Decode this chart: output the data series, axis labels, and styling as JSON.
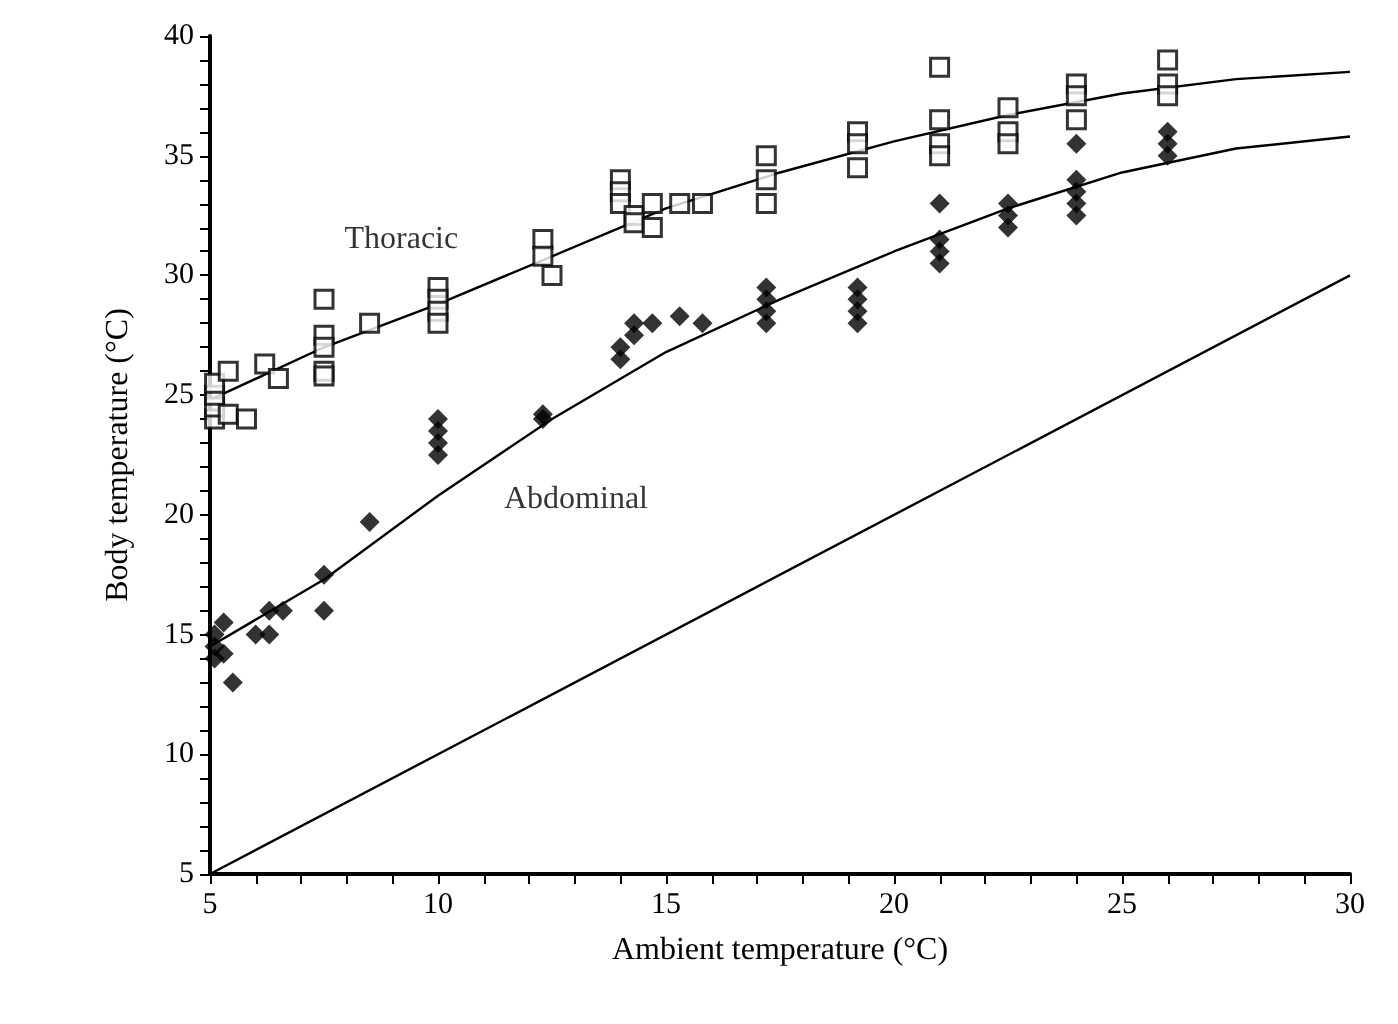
{
  "chart_data": {
    "type": "scatter",
    "xlabel": "Ambient temperature (°C)",
    "ylabel": "Body temperature (°C)",
    "xlim": [
      5,
      30
    ],
    "ylim": [
      5,
      40
    ],
    "xticks": [
      5,
      10,
      15,
      20,
      25,
      30
    ],
    "yticks": [
      5,
      10,
      15,
      20,
      25,
      30,
      35,
      40
    ],
    "grid": false,
    "legend": false,
    "series": [
      {
        "name": "Thoracic",
        "marker": "square",
        "color": "#000000",
        "x": [
          5.1,
          5.1,
          5.1,
          5.1,
          5.4,
          5.4,
          5.8,
          6.2,
          6.5,
          7.5,
          7.5,
          7.5,
          7.5,
          7.5,
          8.5,
          10,
          10,
          10,
          10,
          12.3,
          12.3,
          12.5,
          14,
          14,
          14,
          14.3,
          14.3,
          14.7,
          14.7,
          15.3,
          15.8,
          17.2,
          17.2,
          17.2,
          19.2,
          19.2,
          19.2,
          21,
          21,
          21,
          21,
          22.5,
          22.5,
          22.5,
          24,
          24,
          24,
          26,
          26,
          26
        ],
        "values": [
          24,
          24.5,
          25,
          25.5,
          26,
          24.2,
          24,
          26.3,
          25.7,
          29,
          27.5,
          27,
          26,
          25.8,
          28,
          29.5,
          29,
          28.5,
          28,
          31.5,
          30.8,
          30,
          34,
          33.5,
          33,
          32.5,
          32.2,
          33,
          32,
          33,
          33,
          35,
          34,
          33,
          36,
          35.5,
          34.5,
          38.7,
          36.5,
          35.5,
          35,
          37,
          36,
          35.5,
          38,
          37.5,
          36.5,
          39,
          38,
          37.5
        ]
      },
      {
        "name": "Abdominal",
        "marker": "diamond",
        "color": "#000000",
        "x": [
          5.1,
          5.1,
          5.1,
          5.3,
          5.3,
          5.5,
          6,
          6.3,
          6.3,
          6.6,
          7.5,
          7.5,
          8.5,
          10,
          10,
          10,
          10,
          12.3,
          12.3,
          14,
          14,
          14.3,
          14.3,
          14.7,
          15.3,
          15.8,
          17.2,
          17.2,
          17.2,
          17.2,
          19.2,
          19.2,
          19.2,
          19.2,
          21,
          21,
          21,
          21,
          22.5,
          22.5,
          22.5,
          24,
          24,
          24,
          24,
          24,
          26,
          26,
          26
        ],
        "values": [
          15,
          14.5,
          14,
          15.5,
          14.2,
          13,
          15,
          16,
          15,
          16,
          17.5,
          16,
          19.7,
          24,
          23.5,
          23,
          22.5,
          24,
          24.2,
          26.5,
          27,
          27.5,
          28,
          28,
          28.3,
          28,
          29.5,
          29,
          28.5,
          28,
          29.5,
          29,
          28.5,
          28,
          33,
          31.5,
          31,
          30.5,
          33,
          32.5,
          32,
          35.5,
          34,
          33.5,
          33,
          32.5,
          36,
          35.5,
          35
        ]
      },
      {
        "type": "line",
        "marker": "none",
        "color": "#000000",
        "x": [
          5,
          7.5,
          10,
          12.5,
          15,
          17.5,
          20,
          22.5,
          25,
          27.5,
          30
        ],
        "values": [
          24.8,
          27,
          28.8,
          30.8,
          32.8,
          34.3,
          35.6,
          36.7,
          37.6,
          38.2,
          38.5
        ]
      },
      {
        "type": "line",
        "marker": "none",
        "color": "#000000",
        "x": [
          5,
          7.5,
          10,
          12.5,
          15,
          17.5,
          20,
          22.5,
          25,
          27.5,
          30
        ],
        "values": [
          14.5,
          17.3,
          20.8,
          24,
          26.8,
          29,
          31,
          32.8,
          34.3,
          35.3,
          35.8
        ]
      },
      {
        "type": "line",
        "marker": "none",
        "color": "#000000",
        "x": [
          5,
          30
        ],
        "values": [
          5,
          30
        ]
      }
    ]
  }
}
